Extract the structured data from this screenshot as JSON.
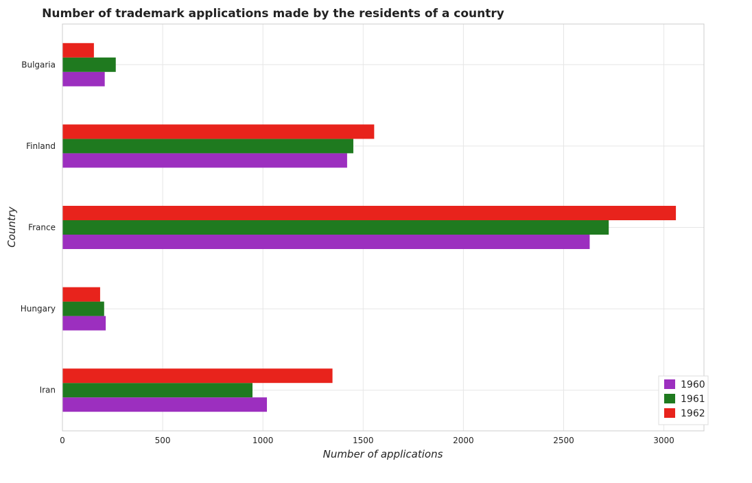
{
  "chart_data": {
    "type": "bar",
    "orientation": "horizontal",
    "title": "Number of trademark applications made by the residents of a country",
    "xlabel": "Number of applications",
    "ylabel": "Country",
    "categories": [
      "Bulgaria",
      "Finland",
      "France",
      "Hungary",
      "Iran"
    ],
    "series": [
      {
        "name": "1960",
        "color": "#9c2fbf",
        "values": [
          211,
          1420,
          2630,
          216,
          1020
        ]
      },
      {
        "name": "1961",
        "color": "#1f7a1f",
        "values": [
          266,
          1451,
          2725,
          208,
          948
        ]
      },
      {
        "name": "1962",
        "color": "#e8231c",
        "values": [
          157,
          1555,
          3060,
          188,
          1347
        ]
      }
    ],
    "xlim": [
      0,
      3200
    ],
    "xticks": [
      0,
      500,
      1000,
      1500,
      2000,
      2500,
      3000
    ],
    "grid": true,
    "legend_position": "bottom-right"
  }
}
